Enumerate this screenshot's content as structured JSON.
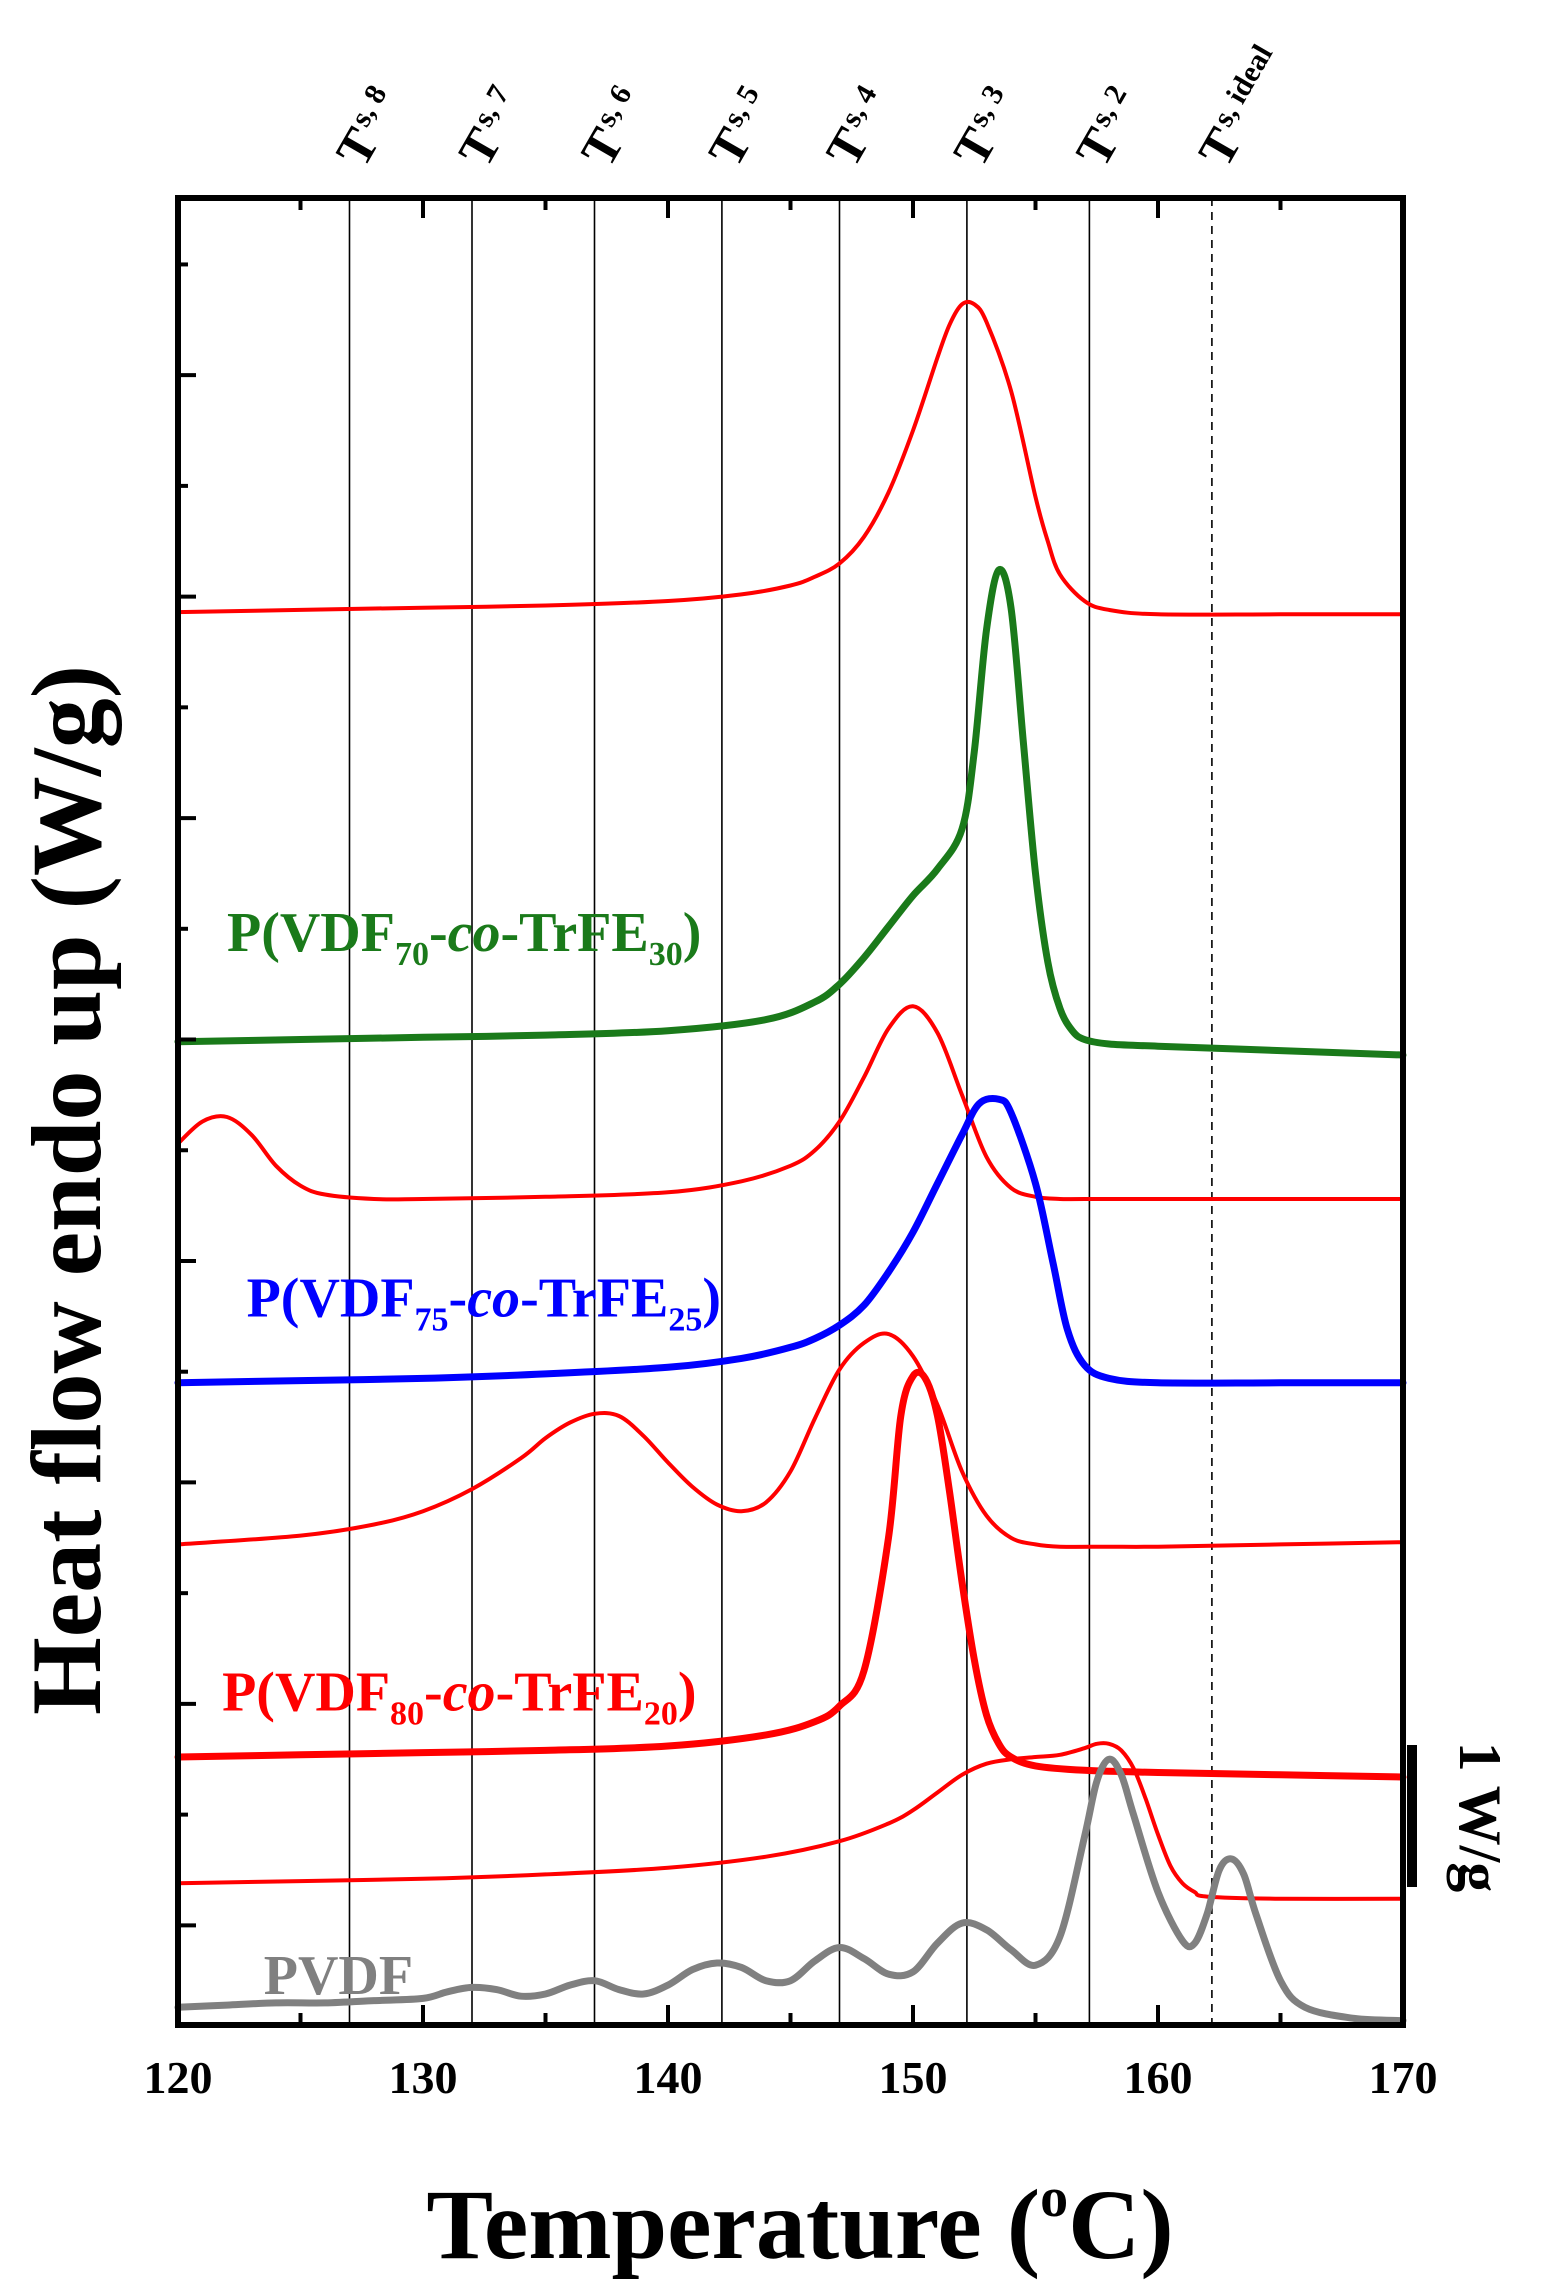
{
  "chart_data": {
    "type": "line",
    "xlabel": "Temperature (oC)",
    "xlabel_parts": [
      "Temperature (",
      "o",
      "C)"
    ],
    "ylabel": "Heat flow endo up (W/g)",
    "xlim": [
      120,
      170
    ],
    "x_ticks": [
      120,
      130,
      140,
      150,
      160,
      170
    ],
    "x_tick_labels": [
      "120",
      "130",
      "140",
      "150",
      "160",
      "170"
    ],
    "y_units_note": "arbitrary offset, W/g",
    "ylim": [
      -1.3,
      6.95
    ],
    "scale_bar": {
      "label": "1 W/g",
      "value": 1
    },
    "reference_lines": [
      {
        "id": "ts8",
        "x": 127,
        "main": "T",
        "sub": "s, 8",
        "style": "solid"
      },
      {
        "id": "ts7",
        "x": 132,
        "main": "T",
        "sub": "s, 7",
        "style": "solid"
      },
      {
        "id": "ts6",
        "x": 137,
        "main": "T",
        "sub": "s, 6",
        "style": "solid"
      },
      {
        "id": "ts5",
        "x": 142.2,
        "main": "T",
        "sub": "s, 5",
        "style": "solid"
      },
      {
        "id": "ts4",
        "x": 147,
        "main": "T",
        "sub": "s, 4",
        "style": "solid"
      },
      {
        "id": "ts3",
        "x": 152.2,
        "main": "T",
        "sub": "s, 3",
        "style": "solid"
      },
      {
        "id": "ts2",
        "x": 157.2,
        "main": "T",
        "sub": "s, 2",
        "style": "solid"
      },
      {
        "id": "tsideal",
        "x": 162.2,
        "main": "T",
        "sub": "s, ideal",
        "style": "dashed"
      }
    ],
    "series_labels": [
      {
        "series": "P(VDF70-co-TrFE30)",
        "parts": [
          "P(VDF",
          "70",
          "-",
          "co",
          "-TrFE",
          "30",
          ")"
        ],
        "color": "#1a7a1a",
        "x": 122,
        "y": 3.55
      },
      {
        "series": "P(VDF75-co-TrFE25)",
        "parts": [
          "P(VDF",
          "75",
          "-",
          "co",
          "-TrFE",
          "25",
          ")"
        ],
        "color": "#0000ff",
        "x": 122.8,
        "y": 1.9
      },
      {
        "series": "P(VDF80-co-TrFE20)",
        "parts": [
          "P(VDF",
          "80",
          "-",
          "co",
          "-TrFE",
          "20",
          ")"
        ],
        "color": "#ff0000",
        "x": 121.8,
        "y": 0.12
      },
      {
        "series": "PVDF",
        "parts": [
          "PVDF"
        ],
        "color": "#808080",
        "x": 123.5,
        "y": -1.16
      }
    ],
    "series": [
      {
        "name": "Red trace 1",
        "color": "#ff0000",
        "width": 4,
        "x": [
          120,
          125,
          130,
          135,
          140,
          143,
          145,
          146,
          147,
          148,
          149,
          150,
          151,
          151.5,
          152,
          152.5,
          153,
          154,
          155,
          155.5,
          156,
          157,
          158,
          160,
          165,
          170
        ],
        "y": [
          5.08,
          5.09,
          5.1,
          5.11,
          5.13,
          5.16,
          5.2,
          5.24,
          5.3,
          5.42,
          5.62,
          5.9,
          6.23,
          6.38,
          6.47,
          6.47,
          6.39,
          6.08,
          5.6,
          5.4,
          5.25,
          5.13,
          5.09,
          5.07,
          5.07,
          5.07
        ]
      },
      {
        "name": "P(VDF70-co-TrFE30)",
        "color": "#1a7a1a",
        "width": 7,
        "x": [
          120,
          125,
          130,
          135,
          140,
          144,
          146,
          147,
          148,
          149,
          150,
          151,
          152,
          152.5,
          153,
          153.5,
          154,
          154.5,
          155,
          155.5,
          156,
          156.5,
          157,
          158,
          160,
          165,
          170
        ],
        "y": [
          3.14,
          3.15,
          3.16,
          3.17,
          3.19,
          3.24,
          3.32,
          3.4,
          3.52,
          3.66,
          3.8,
          3.92,
          4.1,
          4.45,
          5.0,
          5.27,
          5.1,
          4.5,
          3.9,
          3.5,
          3.29,
          3.19,
          3.15,
          3.13,
          3.12,
          3.1,
          3.08
        ]
      },
      {
        "name": "Red trace 2",
        "color": "#ff0000",
        "width": 4,
        "x": [
          120,
          121,
          122,
          123,
          124,
          125,
          126,
          128,
          130,
          135,
          140,
          143,
          145,
          146,
          147,
          148,
          149,
          150,
          151,
          152,
          153,
          154,
          155,
          156,
          157,
          160,
          165,
          170
        ],
        "y": [
          2.68,
          2.78,
          2.8,
          2.72,
          2.58,
          2.49,
          2.45,
          2.43,
          2.43,
          2.44,
          2.46,
          2.51,
          2.58,
          2.65,
          2.78,
          2.98,
          3.2,
          3.3,
          3.18,
          2.9,
          2.62,
          2.48,
          2.44,
          2.43,
          2.43,
          2.43,
          2.43,
          2.43
        ]
      },
      {
        "name": "P(VDF75-co-TrFE25)",
        "color": "#0000ff",
        "width": 7,
        "x": [
          120,
          125,
          130,
          135,
          140,
          143,
          145,
          146,
          147,
          148,
          149,
          150,
          151,
          152,
          152.7,
          153.5,
          154,
          155,
          155.7,
          156.3,
          157,
          158,
          160,
          165,
          170
        ],
        "y": [
          1.6,
          1.61,
          1.62,
          1.64,
          1.67,
          1.71,
          1.76,
          1.8,
          1.86,
          1.95,
          2.1,
          2.28,
          2.5,
          2.72,
          2.86,
          2.88,
          2.82,
          2.5,
          2.15,
          1.84,
          1.68,
          1.62,
          1.6,
          1.6,
          1.6
        ]
      },
      {
        "name": "Red trace 3",
        "color": "#ff0000",
        "width": 4,
        "x": [
          120,
          125,
          128,
          130,
          132,
          134,
          135,
          136,
          137,
          138,
          139,
          140,
          141,
          142,
          143,
          144,
          145,
          146,
          147,
          148,
          149,
          150,
          151,
          152,
          153,
          154,
          155,
          156,
          158,
          160,
          165,
          170
        ],
        "y": [
          0.87,
          0.91,
          0.96,
          1.02,
          1.12,
          1.26,
          1.35,
          1.42,
          1.46,
          1.45,
          1.36,
          1.24,
          1.13,
          1.05,
          1.02,
          1.06,
          1.2,
          1.44,
          1.66,
          1.78,
          1.82,
          1.72,
          1.5,
          1.2,
          1.0,
          0.9,
          0.87,
          0.86,
          0.86,
          0.86,
          0.87,
          0.88
        ]
      },
      {
        "name": "P(VDF80-co-TrFE20)",
        "color": "#ff0000",
        "width": 7,
        "x": [
          120,
          125,
          130,
          135,
          140,
          144,
          146,
          147,
          148,
          149,
          149.5,
          150,
          150.5,
          151,
          151.5,
          152,
          152.5,
          153,
          153.5,
          154,
          155,
          157,
          160,
          165,
          170
        ],
        "y": [
          -0.09,
          -0.08,
          -0.07,
          -0.06,
          -0.04,
          0.01,
          0.07,
          0.14,
          0.3,
          0.9,
          1.45,
          1.63,
          1.62,
          1.45,
          1.1,
          0.7,
          0.35,
          0.1,
          -0.03,
          -0.09,
          -0.13,
          -0.15,
          -0.16,
          -0.17,
          -0.18
        ]
      },
      {
        "name": "Red trace 4",
        "color": "#ff0000",
        "width": 4,
        "x": [
          120,
          125,
          130,
          135,
          140,
          144,
          147,
          149,
          150,
          151,
          152,
          153,
          154,
          155,
          156,
          157,
          157.5,
          158,
          158.5,
          159,
          159.5,
          160,
          160.5,
          161,
          161.5,
          162,
          165,
          170
        ],
        "y": [
          -0.66,
          -0.65,
          -0.64,
          -0.62,
          -0.59,
          -0.54,
          -0.47,
          -0.39,
          -0.33,
          -0.25,
          -0.17,
          -0.12,
          -0.1,
          -0.09,
          -0.08,
          -0.05,
          -0.03,
          -0.03,
          -0.06,
          -0.14,
          -0.28,
          -0.44,
          -0.58,
          -0.66,
          -0.7,
          -0.72,
          -0.73,
          -0.73
        ]
      },
      {
        "name": "PVDF",
        "color": "#808080",
        "width": 7,
        "x": [
          120,
          122,
          124,
          126,
          128,
          130,
          131,
          132,
          133,
          134,
          135,
          136,
          137,
          138,
          139,
          140,
          141,
          142,
          143,
          144,
          145,
          146,
          147,
          148,
          149,
          150,
          151,
          152,
          153,
          154,
          155,
          156,
          157,
          157.5,
          158,
          158.5,
          159,
          160,
          161,
          161.5,
          162,
          162.5,
          163,
          163.5,
          164,
          165,
          166,
          168,
          170
        ],
        "y": [
          -1.22,
          -1.21,
          -1.2,
          -1.2,
          -1.19,
          -1.18,
          -1.15,
          -1.13,
          -1.14,
          -1.17,
          -1.16,
          -1.12,
          -1.1,
          -1.14,
          -1.16,
          -1.12,
          -1.05,
          -1.02,
          -1.04,
          -1.1,
          -1.1,
          -1.01,
          -0.95,
          -1.0,
          -1.07,
          -1.06,
          -0.93,
          -0.84,
          -0.87,
          -0.96,
          -1.03,
          -0.9,
          -0.45,
          -0.2,
          -0.1,
          -0.17,
          -0.35,
          -0.7,
          -0.92,
          -0.93,
          -0.8,
          -0.6,
          -0.55,
          -0.62,
          -0.8,
          -1.1,
          -1.22,
          -1.27,
          -1.28
        ]
      }
    ]
  }
}
